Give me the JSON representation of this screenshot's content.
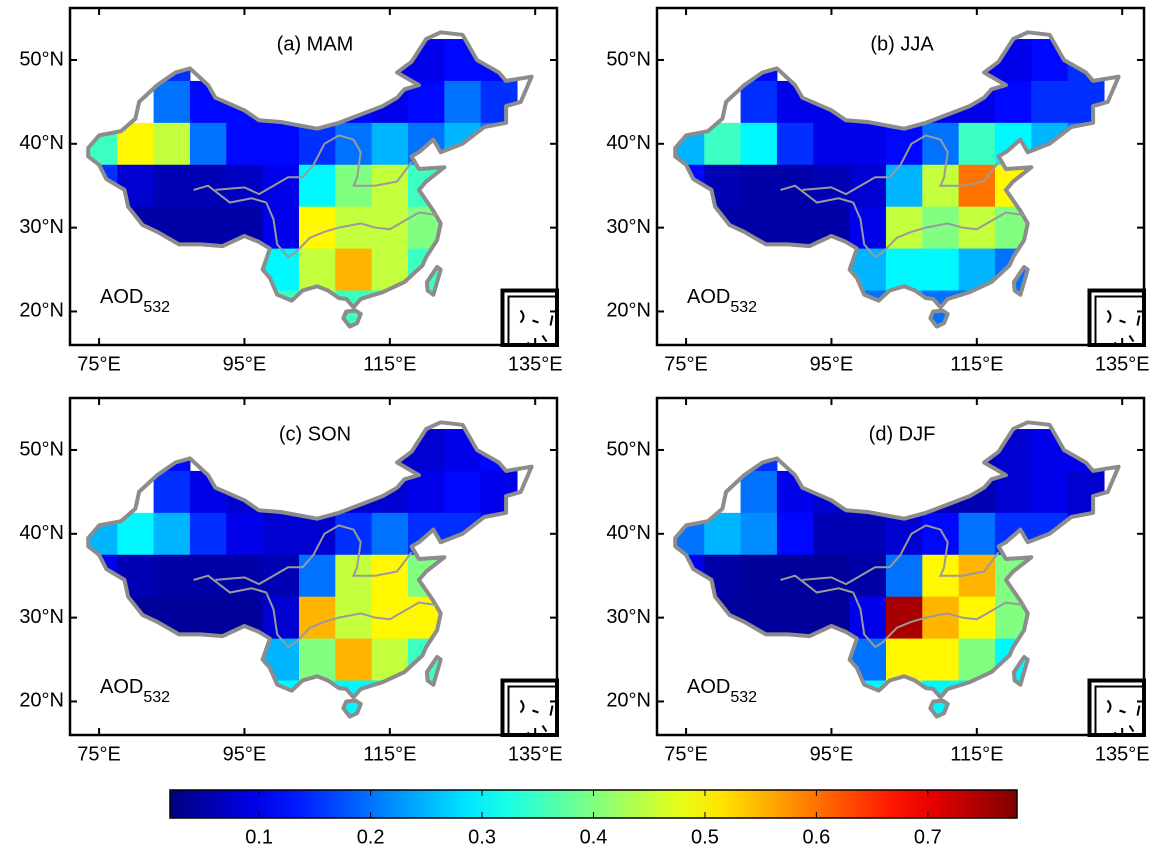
{
  "chart_data": [
    {
      "type": "heatmap",
      "title": "(a) MAM",
      "annotation": {
        "text": "AOD",
        "subscript": "532"
      },
      "x": [
        75,
        80,
        85,
        90,
        95,
        100,
        105,
        110,
        115,
        120,
        125,
        130
      ],
      "y": [
        50,
        45,
        40,
        35,
        30,
        25,
        20
      ],
      "values": [
        [
          null,
          null,
          0.15,
          null,
          null,
          null,
          null,
          null,
          0.1,
          0.1,
          0.12,
          0.12
        ],
        [
          null,
          null,
          0.2,
          0.12,
          0.12,
          0.15,
          0.15,
          0.12,
          0.1,
          0.12,
          0.2,
          0.15
        ],
        [
          0.35,
          0.5,
          0.45,
          0.2,
          0.12,
          0.12,
          0.15,
          0.2,
          0.25,
          0.2,
          0.25,
          0.2
        ],
        [
          0.15,
          0.08,
          0.06,
          0.06,
          0.07,
          0.1,
          0.3,
          0.4,
          0.45,
          0.35,
          null,
          null
        ],
        [
          null,
          0.05,
          0.05,
          0.05,
          0.05,
          0.1,
          0.5,
          0.45,
          0.45,
          0.4,
          null,
          null
        ],
        [
          null,
          null,
          null,
          null,
          0.2,
          0.3,
          0.45,
          0.55,
          0.45,
          0.35,
          null,
          null
        ],
        [
          null,
          null,
          null,
          null,
          null,
          0.35,
          0.4,
          0.35,
          0.35,
          null,
          null,
          null
        ]
      ],
      "xlim": [
        71,
        138
      ],
      "ylim": [
        16,
        56.2
      ],
      "xticks": [
        {
          "value": 75,
          "label": "75°E"
        },
        {
          "value": 95,
          "label": "95°E"
        },
        {
          "value": 115,
          "label": "115°E"
        },
        {
          "value": 135,
          "label": "135°E"
        }
      ],
      "yticks": [
        {
          "value": 20,
          "label": "20°N"
        },
        {
          "value": 30,
          "label": "30°N"
        },
        {
          "value": 40,
          "label": "40°N"
        },
        {
          "value": 50,
          "label": "50°N"
        }
      ]
    },
    {
      "type": "heatmap",
      "title": "(b) JJA",
      "annotation": {
        "text": "AOD",
        "subscript": "532"
      },
      "x": [
        75,
        80,
        85,
        90,
        95,
        100,
        105,
        110,
        115,
        120,
        125,
        130
      ],
      "y": [
        50,
        45,
        40,
        35,
        30,
        25,
        20
      ],
      "values": [
        [
          null,
          null,
          0.12,
          null,
          null,
          null,
          null,
          null,
          0.1,
          0.1,
          0.12,
          0.15
        ],
        [
          null,
          null,
          0.15,
          0.1,
          0.1,
          0.12,
          0.12,
          0.1,
          0.1,
          0.12,
          0.15,
          0.15
        ],
        [
          0.25,
          0.35,
          0.3,
          0.15,
          0.1,
          0.1,
          0.12,
          0.2,
          0.35,
          0.3,
          0.25,
          0.2
        ],
        [
          0.12,
          0.06,
          0.05,
          0.05,
          0.06,
          0.08,
          0.25,
          0.45,
          0.6,
          0.5,
          null,
          null
        ],
        [
          null,
          0.05,
          0.05,
          0.05,
          0.05,
          0.1,
          0.45,
          0.4,
          0.45,
          0.4,
          null,
          null
        ],
        [
          null,
          null,
          null,
          null,
          0.15,
          0.25,
          0.3,
          0.3,
          0.25,
          0.2,
          null,
          null
        ],
        [
          null,
          null,
          null,
          null,
          null,
          0.2,
          0.25,
          0.2,
          0.2,
          null,
          null,
          null
        ]
      ],
      "xlim": [
        71,
        138
      ],
      "ylim": [
        16,
        56.2
      ],
      "xticks": [
        {
          "value": 75,
          "label": "75°E"
        },
        {
          "value": 95,
          "label": "95°E"
        },
        {
          "value": 115,
          "label": "115°E"
        },
        {
          "value": 135,
          "label": "135°E"
        }
      ],
      "yticks": [
        {
          "value": 20,
          "label": "20°N"
        },
        {
          "value": 30,
          "label": "30°N"
        },
        {
          "value": 40,
          "label": "40°N"
        },
        {
          "value": 50,
          "label": "50°N"
        }
      ]
    },
    {
      "type": "heatmap",
      "title": "(c) SON",
      "annotation": {
        "text": "AOD",
        "subscript": "532"
      },
      "x": [
        75,
        80,
        85,
        90,
        95,
        100,
        105,
        110,
        115,
        120,
        125,
        130
      ],
      "y": [
        50,
        45,
        40,
        35,
        30,
        25,
        20
      ],
      "values": [
        [
          null,
          null,
          0.12,
          null,
          null,
          null,
          null,
          null,
          0.08,
          0.08,
          0.1,
          0.12
        ],
        [
          null,
          null,
          0.15,
          0.1,
          0.08,
          0.08,
          0.08,
          0.08,
          0.08,
          0.1,
          0.12,
          0.1
        ],
        [
          0.25,
          0.3,
          0.25,
          0.15,
          0.1,
          0.08,
          0.08,
          0.15,
          0.2,
          0.15,
          0.15,
          0.12
        ],
        [
          0.1,
          0.06,
          0.05,
          0.05,
          0.05,
          0.06,
          0.2,
          0.45,
          0.5,
          0.4,
          null,
          null
        ],
        [
          null,
          0.04,
          0.04,
          0.04,
          0.04,
          0.08,
          0.55,
          0.45,
          0.5,
          0.5,
          null,
          null
        ],
        [
          null,
          null,
          null,
          null,
          0.15,
          0.25,
          0.4,
          0.55,
          0.45,
          0.35,
          null,
          null
        ],
        [
          null,
          null,
          null,
          null,
          null,
          0.3,
          0.35,
          0.3,
          0.3,
          null,
          null,
          null
        ]
      ],
      "xlim": [
        71,
        138
      ],
      "ylim": [
        16,
        56.2
      ],
      "xticks": [
        {
          "value": 75,
          "label": "75°E"
        },
        {
          "value": 95,
          "label": "95°E"
        },
        {
          "value": 115,
          "label": "115°E"
        },
        {
          "value": 135,
          "label": "135°E"
        }
      ],
      "yticks": [
        {
          "value": 20,
          "label": "20°N"
        },
        {
          "value": 30,
          "label": "30°N"
        },
        {
          "value": 40,
          "label": "40°N"
        },
        {
          "value": 50,
          "label": "50°N"
        }
      ]
    },
    {
      "type": "heatmap",
      "title": "(d) DJF",
      "annotation": {
        "text": "AOD",
        "subscript": "532"
      },
      "x": [
        75,
        80,
        85,
        90,
        95,
        100,
        105,
        110,
        115,
        120,
        125,
        130
      ],
      "y": [
        50,
        45,
        40,
        35,
        30,
        25,
        20
      ],
      "values": [
        [
          null,
          null,
          0.15,
          null,
          null,
          null,
          null,
          null,
          0.06,
          0.08,
          0.1,
          0.1
        ],
        [
          null,
          null,
          0.2,
          0.1,
          0.08,
          0.06,
          0.06,
          0.06,
          0.06,
          0.08,
          0.1,
          0.08
        ],
        [
          0.2,
          0.25,
          0.22,
          0.12,
          0.06,
          0.06,
          0.08,
          0.12,
          0.2,
          0.15,
          0.15,
          0.1
        ],
        [
          0.1,
          0.05,
          0.04,
          0.04,
          0.04,
          0.05,
          0.2,
          0.5,
          0.55,
          0.4,
          null,
          null
        ],
        [
          null,
          0.04,
          0.04,
          0.04,
          0.04,
          0.1,
          0.75,
          0.55,
          0.5,
          0.4,
          null,
          null
        ],
        [
          null,
          null,
          null,
          null,
          0.15,
          0.2,
          0.5,
          0.5,
          0.4,
          0.3,
          null,
          null
        ],
        [
          null,
          null,
          null,
          null,
          null,
          0.3,
          0.4,
          0.3,
          0.3,
          null,
          null,
          null
        ]
      ],
      "xlim": [
        71,
        138
      ],
      "ylim": [
        16,
        56.2
      ],
      "xticks": [
        {
          "value": 75,
          "label": "75°E"
        },
        {
          "value": 95,
          "label": "95°E"
        },
        {
          "value": 115,
          "label": "115°E"
        },
        {
          "value": 135,
          "label": "135°E"
        }
      ],
      "yticks": [
        {
          "value": 20,
          "label": "20°N"
        },
        {
          "value": 30,
          "label": "30°N"
        },
        {
          "value": 40,
          "label": "40°N"
        },
        {
          "value": 50,
          "label": "50°N"
        }
      ]
    }
  ],
  "colorbar": {
    "colormap": "jet",
    "range": [
      0.02,
      0.78
    ],
    "ticks": [
      0.1,
      0.2,
      0.3,
      0.4,
      0.5,
      0.6,
      0.7
    ]
  }
}
